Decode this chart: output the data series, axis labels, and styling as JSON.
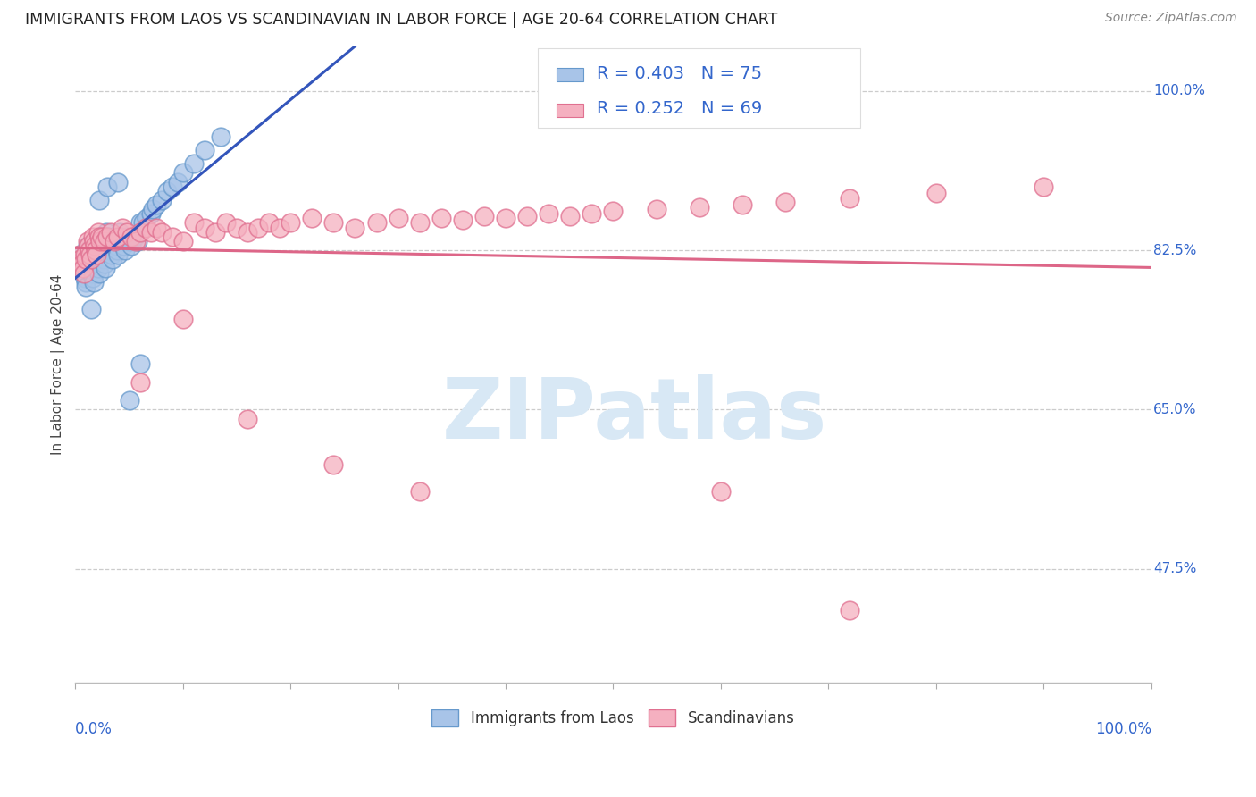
{
  "title": "IMMIGRANTS FROM LAOS VS SCANDINAVIAN IN LABOR FORCE | AGE 20-64 CORRELATION CHART",
  "source": "Source: ZipAtlas.com",
  "ylabel": "In Labor Force | Age 20-64",
  "ytick_labels": [
    "100.0%",
    "82.5%",
    "65.0%",
    "47.5%"
  ],
  "ytick_values": [
    1.0,
    0.825,
    0.65,
    0.475
  ],
  "xlim": [
    0.0,
    1.0
  ],
  "ylim": [
    0.35,
    1.05
  ],
  "laos_R": 0.403,
  "laos_N": 75,
  "scand_R": 0.252,
  "scand_N": 69,
  "laos_color": "#a8c4e8",
  "laos_edge_color": "#6699cc",
  "laos_line_color": "#3355bb",
  "scand_color": "#f5b0c0",
  "scand_edge_color": "#e07090",
  "scand_line_color": "#dd6688",
  "watermark_text": "ZIPatlas",
  "watermark_color": "#d8e8f5",
  "background_color": "#ffffff",
  "grid_color": "#cccccc",
  "title_color": "#222222",
  "axis_label_color": "#3366cc",
  "legend_laos": "Immigrants from Laos",
  "legend_scand": "Scandinavians",
  "laos_x": [
    0.005,
    0.006,
    0.007,
    0.008,
    0.008,
    0.009,
    0.01,
    0.01,
    0.011,
    0.012,
    0.013,
    0.014,
    0.015,
    0.015,
    0.016,
    0.016,
    0.017,
    0.018,
    0.018,
    0.019,
    0.019,
    0.02,
    0.02,
    0.021,
    0.022,
    0.022,
    0.023,
    0.024,
    0.025,
    0.025,
    0.026,
    0.027,
    0.028,
    0.029,
    0.03,
    0.031,
    0.032,
    0.033,
    0.034,
    0.035,
    0.036,
    0.037,
    0.038,
    0.039,
    0.04,
    0.041,
    0.042,
    0.043,
    0.045,
    0.046,
    0.048,
    0.05,
    0.052,
    0.055,
    0.058,
    0.06,
    0.063,
    0.066,
    0.07,
    0.072,
    0.075,
    0.08,
    0.085,
    0.09,
    0.095,
    0.1,
    0.11,
    0.12,
    0.135,
    0.015,
    0.022,
    0.03,
    0.04,
    0.05,
    0.06
  ],
  "laos_y": [
    0.82,
    0.815,
    0.81,
    0.805,
    0.8,
    0.795,
    0.79,
    0.785,
    0.83,
    0.825,
    0.82,
    0.815,
    0.81,
    0.805,
    0.8,
    0.795,
    0.79,
    0.835,
    0.83,
    0.825,
    0.82,
    0.815,
    0.81,
    0.805,
    0.8,
    0.84,
    0.835,
    0.83,
    0.825,
    0.82,
    0.815,
    0.81,
    0.805,
    0.845,
    0.84,
    0.835,
    0.83,
    0.825,
    0.82,
    0.815,
    0.84,
    0.835,
    0.83,
    0.825,
    0.82,
    0.845,
    0.84,
    0.835,
    0.83,
    0.825,
    0.84,
    0.835,
    0.83,
    0.84,
    0.835,
    0.855,
    0.855,
    0.86,
    0.865,
    0.87,
    0.875,
    0.88,
    0.89,
    0.895,
    0.9,
    0.91,
    0.92,
    0.935,
    0.95,
    0.76,
    0.88,
    0.895,
    0.9,
    0.66,
    0.7
  ],
  "scand_x": [
    0.004,
    0.005,
    0.006,
    0.007,
    0.008,
    0.009,
    0.01,
    0.011,
    0.012,
    0.013,
    0.014,
    0.015,
    0.016,
    0.017,
    0.018,
    0.019,
    0.02,
    0.021,
    0.022,
    0.023,
    0.025,
    0.027,
    0.03,
    0.033,
    0.036,
    0.04,
    0.044,
    0.048,
    0.052,
    0.056,
    0.06,
    0.065,
    0.07,
    0.075,
    0.08,
    0.09,
    0.1,
    0.11,
    0.12,
    0.13,
    0.14,
    0.15,
    0.16,
    0.17,
    0.18,
    0.19,
    0.2,
    0.22,
    0.24,
    0.26,
    0.28,
    0.3,
    0.32,
    0.34,
    0.36,
    0.38,
    0.4,
    0.42,
    0.44,
    0.46,
    0.48,
    0.5,
    0.54,
    0.58,
    0.62,
    0.66,
    0.72,
    0.8,
    0.9
  ],
  "scand_y": [
    0.82,
    0.815,
    0.81,
    0.805,
    0.8,
    0.82,
    0.815,
    0.835,
    0.83,
    0.825,
    0.82,
    0.815,
    0.84,
    0.835,
    0.83,
    0.825,
    0.82,
    0.845,
    0.84,
    0.835,
    0.84,
    0.835,
    0.84,
    0.845,
    0.835,
    0.84,
    0.85,
    0.845,
    0.84,
    0.835,
    0.845,
    0.85,
    0.845,
    0.85,
    0.845,
    0.84,
    0.835,
    0.855,
    0.85,
    0.845,
    0.855,
    0.85,
    0.845,
    0.85,
    0.855,
    0.85,
    0.855,
    0.86,
    0.855,
    0.85,
    0.855,
    0.86,
    0.855,
    0.86,
    0.858,
    0.862,
    0.86,
    0.862,
    0.865,
    0.862,
    0.865,
    0.868,
    0.87,
    0.872,
    0.875,
    0.878,
    0.882,
    0.888,
    0.895
  ],
  "scand_x_outliers": [
    0.06,
    0.1,
    0.16,
    0.24,
    0.32,
    0.6,
    0.72
  ],
  "scand_y_outliers": [
    0.68,
    0.75,
    0.64,
    0.59,
    0.56,
    0.56,
    0.43
  ]
}
